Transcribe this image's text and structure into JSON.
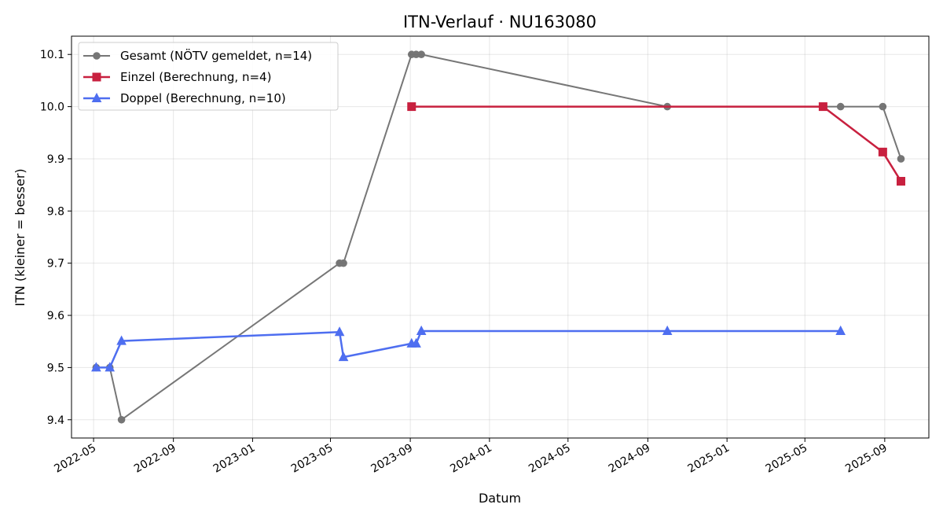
{
  "chart_data": {
    "type": "line",
    "title": "ITN-Verlauf · NU163080",
    "xlabel": "Datum",
    "ylabel": "ITN  (kleiner = besser)",
    "x_type": "date",
    "xlim": [
      "2022-03-28",
      "2025-11-08"
    ],
    "ylim": [
      9.365,
      10.135
    ],
    "x_ticks": [
      "2022-05-01",
      "2022-09-01",
      "2023-01-01",
      "2023-05-01",
      "2023-09-01",
      "2024-01-01",
      "2024-05-01",
      "2024-09-01",
      "2025-01-01",
      "2025-05-01",
      "2025-09-01"
    ],
    "x_tick_labels": [
      "2022-05",
      "2022-09",
      "2023-01",
      "2023-05",
      "2023-09",
      "2024-01",
      "2024-05",
      "2024-09",
      "2025-01",
      "2025-05",
      "2025-09"
    ],
    "y_ticks": [
      9.4,
      9.5,
      9.6,
      9.7,
      9.8,
      9.9,
      10.0,
      10.1
    ],
    "y_tick_labels": [
      "9.4",
      "9.5",
      "9.6",
      "9.7",
      "9.8",
      "9.9",
      "10.0",
      "10.1"
    ],
    "grid": true,
    "legend_position": "top-left",
    "series": [
      {
        "name": "Gesamt (NÖTV gemeldet, n=14)",
        "color": "#555555",
        "marker": "circle",
        "x": [
          "2022-05-05",
          "2022-05-26",
          "2022-06-13",
          "2023-05-15",
          "2023-05-21",
          "2023-09-03",
          "2023-09-10",
          "2023-09-18",
          "2024-10-01",
          "2025-06-25",
          "2025-08-29",
          "2025-09-26"
        ],
        "y": [
          9.5,
          9.5,
          9.4,
          9.7,
          9.7,
          10.1,
          10.1,
          10.1,
          10.0,
          10.0,
          10.0,
          9.9
        ]
      },
      {
        "name": "Einzel (Berechnung, n=4)",
        "color": "#c8203f",
        "marker": "square",
        "x": [
          "2023-09-03",
          "2025-05-29",
          "2025-08-29",
          "2025-09-26"
        ],
        "y": [
          10.0,
          10.0,
          9.913,
          9.857
        ]
      },
      {
        "name": "Doppel (Berechnung, n=10)",
        "color": "#4e6ef0",
        "marker": "triangle",
        "x": [
          "2022-05-05",
          "2022-05-26",
          "2022-06-13",
          "2023-05-15",
          "2023-05-21",
          "2023-09-03",
          "2023-09-10",
          "2023-09-18",
          "2024-10-01",
          "2025-06-25"
        ],
        "y": [
          9.5,
          9.5,
          9.551,
          9.568,
          9.52,
          9.546,
          9.546,
          9.57,
          9.57,
          9.57
        ]
      }
    ]
  }
}
